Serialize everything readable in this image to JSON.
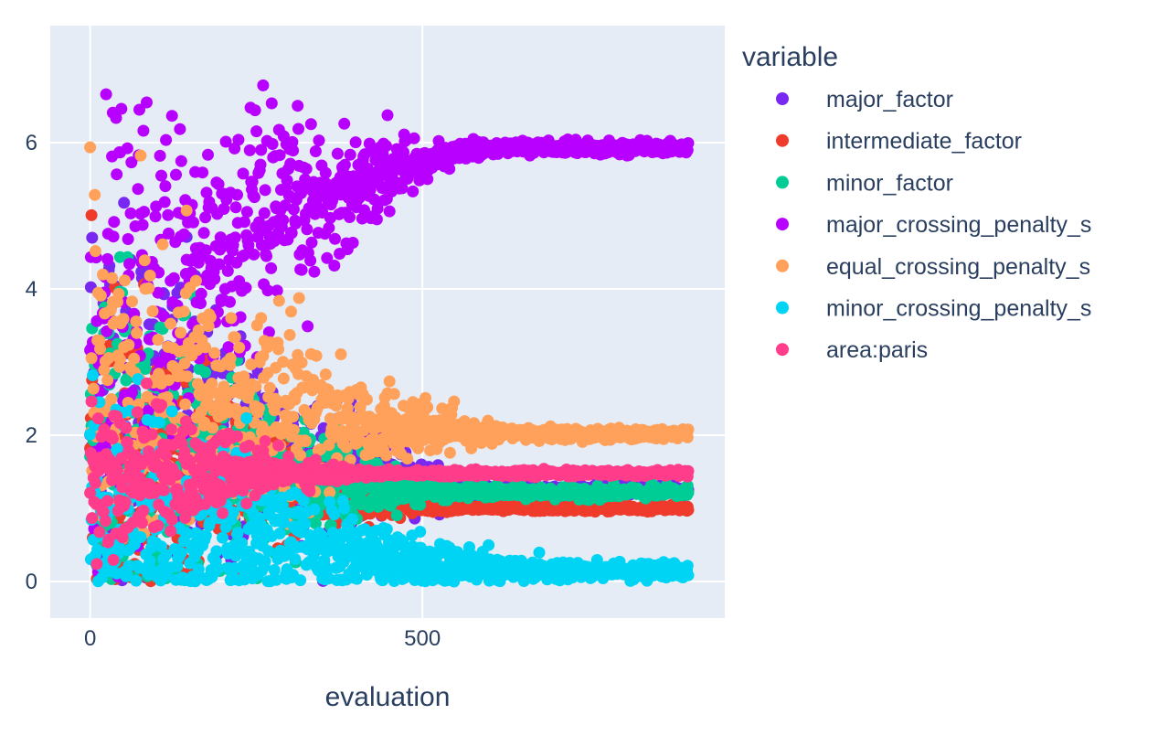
{
  "chart_data": {
    "type": "scatter",
    "title": "",
    "xlabel": "evaluation",
    "ylabel": "",
    "xlim": [
      -60,
      955
    ],
    "ylim": [
      -0.5,
      7.6
    ],
    "x_ticks": [
      0,
      500
    ],
    "x_tick_labels": [
      "0",
      "500"
    ],
    "y_ticks": [
      0,
      2,
      4,
      6
    ],
    "y_tick_labels": [
      "0",
      "2",
      "4",
      "6"
    ],
    "grid": true,
    "plot_background": "#e5ecf6",
    "legend": {
      "title": "variable",
      "position": "right"
    },
    "series": [
      {
        "name": "major_factor",
        "color": "#7828f0",
        "n": 900,
        "x_range": [
          0,
          900
        ],
        "start": [
          2.5,
          1.6
        ],
        "converge_at": 620,
        "end": [
          1.25,
          0.04
        ]
      },
      {
        "name": "intermediate_factor",
        "color": "#ef3b2c",
        "n": 900,
        "x_range": [
          0,
          900
        ],
        "start": [
          1.9,
          1.3
        ],
        "converge_at": 520,
        "end": [
          1.0,
          0.02
        ]
      },
      {
        "name": "minor_factor",
        "color": "#00cc96",
        "n": 900,
        "x_range": [
          0,
          900
        ],
        "start": [
          2.0,
          1.4
        ],
        "converge_at": 560,
        "end": [
          1.22,
          0.04
        ]
      },
      {
        "name": "major_crossing_penalty_s",
        "color": "#b700ff",
        "n": 900,
        "x_range": [
          0,
          900
        ],
        "start": [
          3.2,
          1.7
        ],
        "converge_at": 620,
        "end": [
          5.93,
          0.04
        ]
      },
      {
        "name": "equal_crossing_penalty_s",
        "color": "#ffa15a",
        "n": 900,
        "x_range": [
          0,
          900
        ],
        "start": [
          2.8,
          1.5
        ],
        "converge_at": 640,
        "end": [
          2.02,
          0.04
        ]
      },
      {
        "name": "minor_crossing_penalty_s",
        "color": "#00d4f5",
        "n": 900,
        "x_range": [
          0,
          900
        ],
        "start": [
          1.0,
          0.9
        ],
        "converge_at": 700,
        "end": [
          0.15,
          0.06
        ]
      },
      {
        "name": "area:paris",
        "color": "#ff3d8a",
        "n": 900,
        "x_range": [
          0,
          900
        ],
        "start": [
          1.5,
          0.6
        ],
        "converge_at": 450,
        "end": [
          1.48,
          0.02
        ]
      }
    ]
  }
}
